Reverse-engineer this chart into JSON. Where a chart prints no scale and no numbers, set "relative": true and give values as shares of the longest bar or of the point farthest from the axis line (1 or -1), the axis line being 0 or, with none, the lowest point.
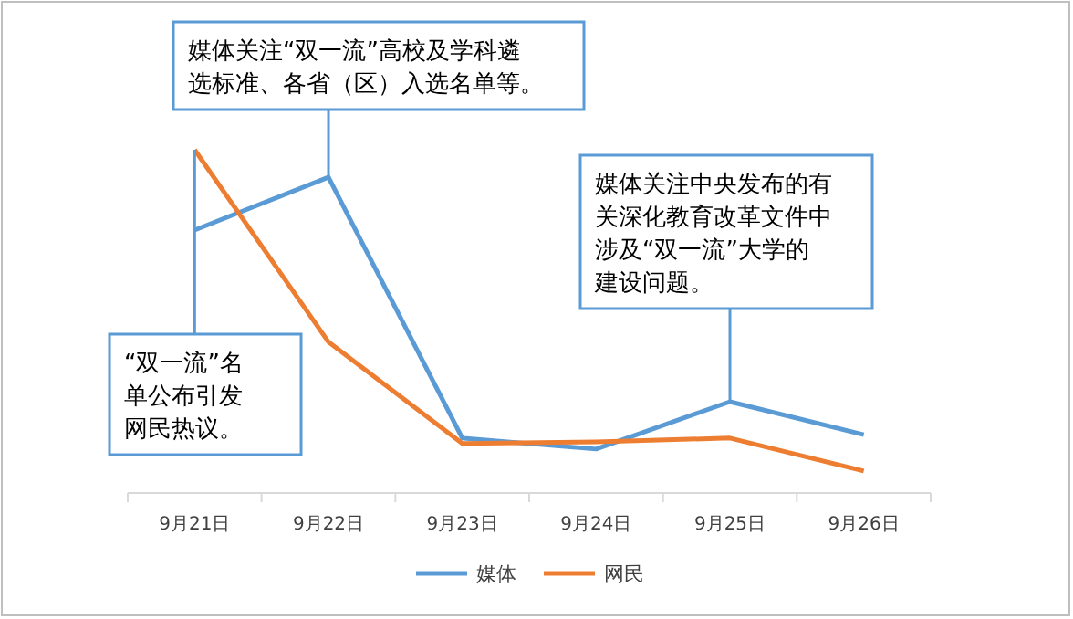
{
  "chart_data": {
    "type": "line",
    "relative": true,
    "categories": [
      "9月21日",
      "9月22日",
      "9月23日",
      "9月24日",
      "9月25日",
      "9月26日"
    ],
    "series": [
      {
        "name": "媒体",
        "color": "#5b9bd5",
        "values": [
          0.766,
          0.92,
          0.16,
          0.128,
          0.266,
          0.17
        ]
      },
      {
        "name": "网民",
        "color": "#ed7d31",
        "values": [
          1,
          0.44,
          0.144,
          0.149,
          0.16,
          0.064
        ]
      }
    ],
    "annotations": [
      {
        "text": "媒体关注“双一流”高校及学科遴选标准、各省（区）入选名单等。",
        "x": "9月22日",
        "y": 0.92
      },
      {
        "text": "媒体关注中央发布的有关深化教育改革文件中涉及“双一流”大学的建设问题。",
        "x": "9月25日",
        "y": 0.266
      },
      {
        "text": "“双一流”名单公布引发网民热议。",
        "x": "9月21日",
        "y": 1
      }
    ],
    "legend": "bottom",
    "marker": "none",
    "line_style": "solid"
  }
}
